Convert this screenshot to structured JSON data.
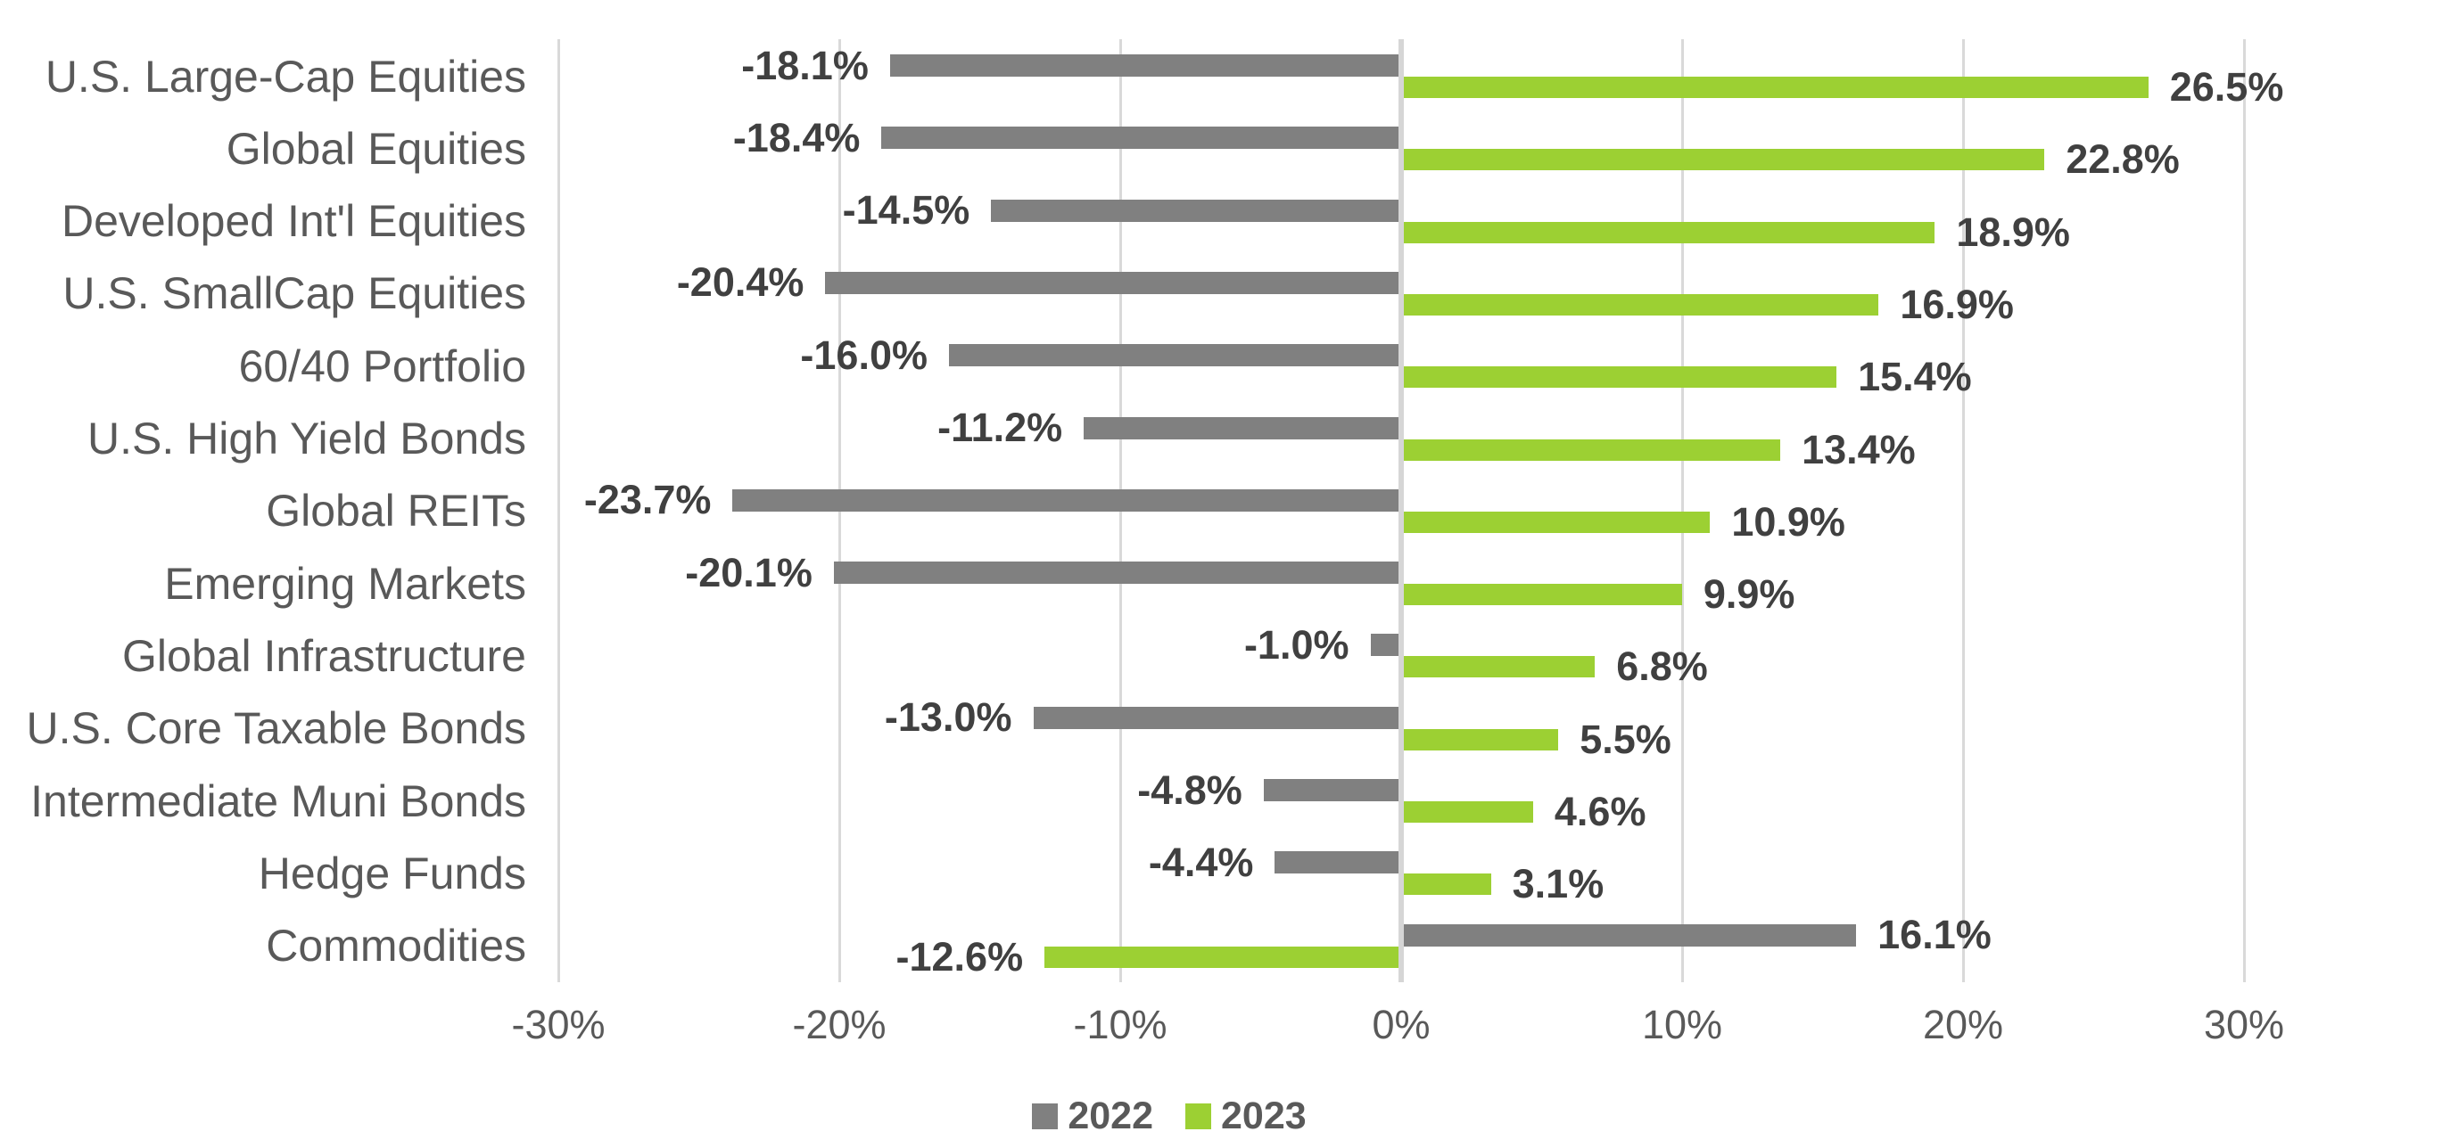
{
  "chart_data": {
    "type": "bar",
    "orientation": "horizontal",
    "title": "",
    "categories": [
      "U.S. Large-Cap Equities",
      "Global Equities",
      "Developed Int'l Equities",
      "U.S. SmallCap Equities",
      "60/40 Portfolio",
      "U.S. High Yield Bonds",
      "Global REITs",
      "Emerging Markets",
      "Global Infrastructure",
      "U.S. Core Taxable Bonds",
      "Intermediate Muni Bonds",
      "Hedge Funds",
      "Commodities"
    ],
    "series": [
      {
        "name": "2022",
        "color": "#808080",
        "values": [
          -18.1,
          -18.4,
          -14.5,
          -20.4,
          -16.0,
          -11.2,
          -23.7,
          -20.1,
          -1.0,
          -13.0,
          -4.8,
          -4.4,
          16.1
        ]
      },
      {
        "name": "2023",
        "color": "#9CD033",
        "values": [
          26.5,
          22.8,
          18.9,
          16.9,
          15.4,
          13.4,
          10.9,
          9.9,
          6.8,
          5.5,
          4.6,
          3.1,
          -12.6
        ]
      }
    ],
    "value_label_format": "{value}%",
    "x_axis": {
      "range": [
        -30,
        30
      ],
      "ticks": [
        -30,
        -20,
        -10,
        0,
        10,
        20,
        30
      ],
      "tick_labels": [
        "-30%",
        "-20%",
        "-10%",
        "0%",
        "10%",
        "20%",
        "30%"
      ]
    },
    "grid": true,
    "legend": {
      "position": "bottom",
      "entries": [
        "2022",
        "2023"
      ]
    },
    "colors": {
      "grid": "#D9D9D9",
      "zero_line": "#D6D6D6",
      "category_text": "#595959",
      "tick_text": "#595959",
      "value_text": "#404040",
      "legend_text": "#595959",
      "background": "#FFFFFF"
    }
  }
}
